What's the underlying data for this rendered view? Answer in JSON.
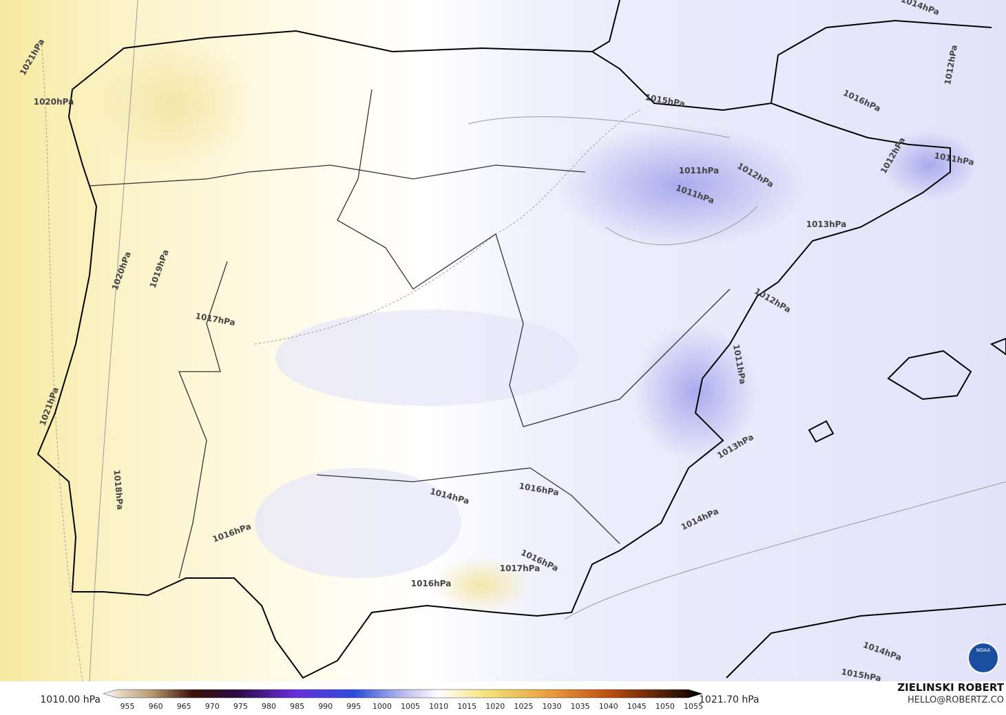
{
  "map": {
    "contour_labels": [
      "1021hPa",
      "1020hPa",
      "1014hPa",
      "1012hPa",
      "1016hPa",
      "1015hPa",
      "1011hPa",
      "1012hPa",
      "1011hPa",
      "1011hPa",
      "1012hPa",
      "1013hPa",
      "1012hPa",
      "1020hPa",
      "1019hPa",
      "1017hPa",
      "1011hPa",
      "1021hPa",
      "1013hPa",
      "1014hPa",
      "1016hPa",
      "1018hPa",
      "1016hPa",
      "1014hPa",
      "1016hPa",
      "1017hPa",
      "1016hPa",
      "1014hPa",
      "1015hPa"
    ]
  },
  "colorbar": {
    "min_label": "1010.00 hPa",
    "max_label": "1021.70 hPa",
    "ticks": [
      955,
      960,
      965,
      970,
      975,
      980,
      985,
      990,
      995,
      1000,
      1005,
      1010,
      1015,
      1020,
      1025,
      1030,
      1035,
      1040,
      1045,
      1050,
      1055
    ]
  },
  "credit": {
    "name": "ZIELINSKI ROBERT",
    "email": "HELLO@ROBERTZ.CO"
  },
  "logo": "NOAA"
}
